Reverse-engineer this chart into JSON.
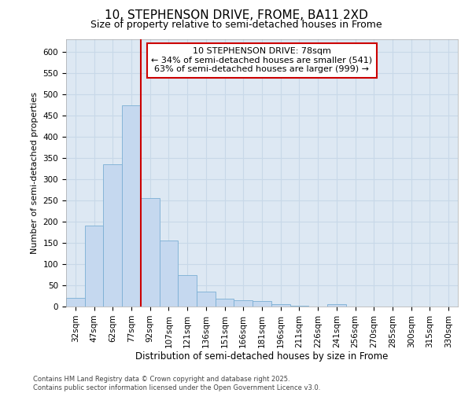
{
  "title_line1": "10, STEPHENSON DRIVE, FROME, BA11 2XD",
  "title_line2": "Size of property relative to semi-detached houses in Frome",
  "xlabel": "Distribution of semi-detached houses by size in Frome",
  "ylabel": "Number of semi-detached properties",
  "footer_line1": "Contains HM Land Registry data © Crown copyright and database right 2025.",
  "footer_line2": "Contains public sector information licensed under the Open Government Licence v3.0.",
  "bar_labels": [
    "32sqm",
    "47sqm",
    "62sqm",
    "77sqm",
    "92sqm",
    "107sqm",
    "121sqm",
    "136sqm",
    "151sqm",
    "166sqm",
    "181sqm",
    "196sqm",
    "211sqm",
    "226sqm",
    "241sqm",
    "256sqm",
    "270sqm",
    "285sqm",
    "300sqm",
    "315sqm",
    "330sqm"
  ],
  "bar_values": [
    20,
    190,
    335,
    475,
    255,
    155,
    75,
    35,
    18,
    15,
    13,
    5,
    2,
    0,
    5,
    0,
    0,
    0,
    0,
    0,
    0
  ],
  "bar_color": "#c5d8ef",
  "bar_edge_color": "#7bafd4",
  "grid_color": "#c8d8e8",
  "bg_color": "#dde8f3",
  "fig_bg_color": "#ffffff",
  "vline_x": 3.5,
  "vline_color": "#cc0000",
  "annotation_title": "10 STEPHENSON DRIVE: 78sqm",
  "annotation_line1": "← 34% of semi-detached houses are smaller (541)",
  "annotation_line2": "63% of semi-detached houses are larger (999) →",
  "annotation_box_color": "#cc0000",
  "ylim": [
    0,
    630
  ],
  "yticks": [
    0,
    50,
    100,
    150,
    200,
    250,
    300,
    350,
    400,
    450,
    500,
    550,
    600
  ],
  "title1_fontsize": 11,
  "title2_fontsize": 9,
  "tick_fontsize": 7.5,
  "ylabel_fontsize": 8,
  "xlabel_fontsize": 8.5,
  "footer_fontsize": 6,
  "ann_fontsize": 8
}
